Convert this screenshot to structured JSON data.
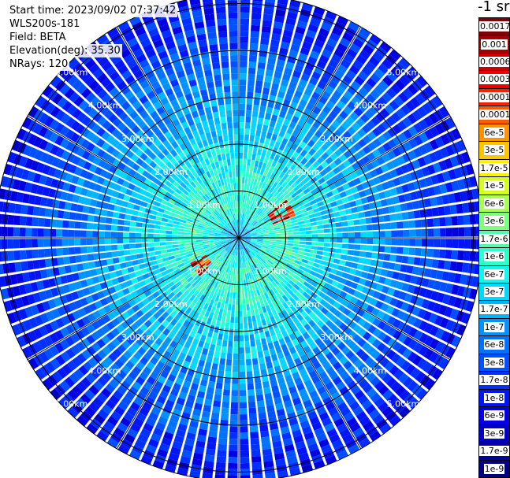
{
  "header": {
    "start_time": "Start time: 2023/09/02 07:37:42",
    "instrument": "WLS200s-181",
    "field": "Field: BETA",
    "elevation": "Elevation(deg): 35.30",
    "nrays": "NRays: 120"
  },
  "colorbar": {
    "units_label": "-1 sr",
    "entries": [
      {
        "label": "0.0017",
        "color": "#7f0000",
        "text_color": "#ffffff"
      },
      {
        "label": "0.001",
        "color": "#a30000",
        "text_color": "#ffffff"
      },
      {
        "label": "0.0006",
        "color": "#c80000",
        "text_color": "#ffffff"
      },
      {
        "label": "0.0003",
        "color": "#ee0000",
        "text_color": "#ffffff"
      },
      {
        "label": "0.00017",
        "color": "#ff1e00",
        "text_color": "#ffffff"
      },
      {
        "label": "0.0001",
        "color": "#ff5a00",
        "text_color": "#000000"
      },
      {
        "label": "6e-5",
        "color": "#ff9200",
        "text_color": "#000000"
      },
      {
        "label": "3e-5",
        "color": "#ffc400",
        "text_color": "#000000"
      },
      {
        "label": "1.7e-5",
        "color": "#fff200",
        "text_color": "#000000"
      },
      {
        "label": "1e-5",
        "color": "#d6ff21",
        "text_color": "#000000"
      },
      {
        "label": "6e-6",
        "color": "#a6ff51",
        "text_color": "#000000"
      },
      {
        "label": "3e-6",
        "color": "#7dff7a",
        "text_color": "#000000"
      },
      {
        "label": "1.7e-6",
        "color": "#51ffa6",
        "text_color": "#000000"
      },
      {
        "label": "1e-6",
        "color": "#2bffcc",
        "text_color": "#000000"
      },
      {
        "label": "6e-7",
        "color": "#13f6ed",
        "text_color": "#000000"
      },
      {
        "label": "3e-7",
        "color": "#00d8ff",
        "text_color": "#000000"
      },
      {
        "label": "1.7e-7",
        "color": "#00b4ff",
        "text_color": "#000000"
      },
      {
        "label": "1e-7",
        "color": "#0092ff",
        "text_color": "#ffffff"
      },
      {
        "label": "6e-8",
        "color": "#0072ff",
        "text_color": "#ffffff"
      },
      {
        "label": "3e-8",
        "color": "#0050ff",
        "text_color": "#ffffff"
      },
      {
        "label": "1.7e-8",
        "color": "#0030ff",
        "text_color": "#ffffff"
      },
      {
        "label": "1e-8",
        "color": "#0014f5",
        "text_color": "#ffffff"
      },
      {
        "label": "6e-9",
        "color": "#0000e0",
        "text_color": "#ffffff"
      },
      {
        "label": "3e-9",
        "color": "#0000c2",
        "text_color": "#ffffff"
      },
      {
        "label": "1.7e-9",
        "color": "#0000a3",
        "text_color": "#ffffff"
      },
      {
        "label": "1e-9",
        "color": "#000080",
        "text_color": "#ffffff"
      }
    ]
  },
  "chart_data": {
    "type": "heatmap",
    "projection": "ppi",
    "field": "BETA",
    "units": "-1 sr",
    "scale": "log",
    "elevation_deg": 35.3,
    "n_rays": 120,
    "range_rings_km": [
      1,
      2,
      3,
      4,
      5
    ],
    "range_ring_labels": [
      "1.00km",
      "2.00km",
      "3.00km",
      "4.00km",
      "5.00km"
    ],
    "azimuth_spokes_deg": [
      0,
      30,
      60,
      90,
      120,
      150,
      180,
      210,
      240,
      270,
      300,
      330
    ],
    "max_range_km": 5.2,
    "value_range": [
      1e-09,
      0.0017
    ],
    "radial_profile": [
      {
        "range_km": 0.0,
        "beta": 1e-07
      },
      {
        "range_km": 0.5,
        "beta": 6e-07
      },
      {
        "range_km": 1.0,
        "beta": 1e-06
      },
      {
        "range_km": 1.5,
        "beta": 6e-07
      },
      {
        "range_km": 2.0,
        "beta": 3e-07
      },
      {
        "range_km": 3.0,
        "beta": 1e-07
      },
      {
        "range_km": 4.0,
        "beta": 3e-08
      },
      {
        "range_km": 5.0,
        "beta": 1e-08
      }
    ],
    "hotspots": [
      {
        "azimuth_deg": 60,
        "range_km": 1.05,
        "beta": 0.0003
      },
      {
        "azimuth_deg": 235,
        "range_km": 0.95,
        "beta": 0.0003
      }
    ]
  }
}
